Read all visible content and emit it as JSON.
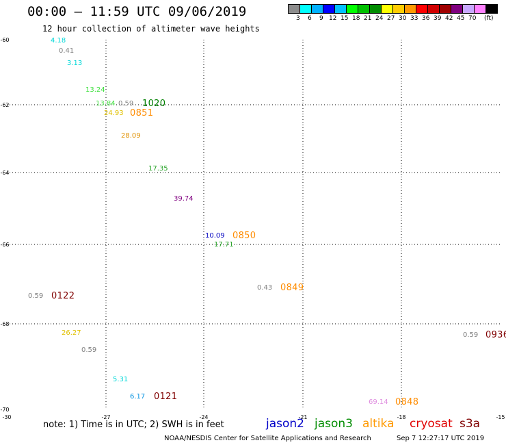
{
  "title": "00:00 – 11:59 UTC 09/06/2019",
  "subtitle": "12 hour collection of altimeter wave heights",
  "legend": {
    "colors": [
      "#8c8c8c",
      "#00ffff",
      "#00b0ff",
      "#0000ff",
      "#00c0ff",
      "#00ff00",
      "#00c000",
      "#008c00",
      "#ffff00",
      "#ffcc00",
      "#ff9900",
      "#ff0000",
      "#d00000",
      "#a00000",
      "#800080",
      "#c8a8ff",
      "#ff80ff",
      "#000000"
    ],
    "labels": [
      "3",
      "6",
      "9",
      "12",
      "15",
      "18",
      "21",
      "24",
      "27",
      "30",
      "33",
      "36",
      "39",
      "42",
      "45",
      "70"
    ],
    "unit": "(ft)"
  },
  "map": {
    "y_axis_labels": [
      "-60",
      "-62",
      "-64",
      "-66",
      "-68",
      "-70"
    ],
    "x_axis_labels": [
      "-30",
      "-27",
      "-24",
      "-21",
      "-18",
      "-15"
    ]
  },
  "observations": [
    {
      "text": "4.18",
      "color": "#00d8d8",
      "kind": "val"
    },
    {
      "text": "0.41",
      "color": "#808080",
      "kind": "val"
    },
    {
      "text": "3.13",
      "color": "#00d8d8",
      "kind": "val"
    },
    {
      "text": "13.24",
      "color": "#40e040",
      "kind": "val"
    },
    {
      "text": "13.84",
      "color": "#40e040",
      "kind": "val"
    },
    {
      "text": "0.59",
      "color": "#808080",
      "kind": "val"
    },
    {
      "text": "1020",
      "color": "#008000",
      "kind": "time"
    },
    {
      "text": "24.93",
      "color": "#e0c000",
      "kind": "val"
    },
    {
      "text": "0851",
      "color": "#ff8c00",
      "kind": "time"
    },
    {
      "text": "28.09",
      "color": "#e09000",
      "kind": "val"
    },
    {
      "text": "17.35",
      "color": "#20a020",
      "kind": "val"
    },
    {
      "text": "39.74",
      "color": "#800080",
      "kind": "val"
    },
    {
      "text": "10.09",
      "color": "#0000c0",
      "kind": "val"
    },
    {
      "text": "0850",
      "color": "#ff8c00",
      "kind": "time"
    },
    {
      "text": "17.71",
      "color": "#20a020",
      "kind": "val"
    },
    {
      "text": "0.43",
      "color": "#808080",
      "kind": "val"
    },
    {
      "text": "0849",
      "color": "#ff8c00",
      "kind": "time"
    },
    {
      "text": "0.59",
      "color": "#808080",
      "kind": "val"
    },
    {
      "text": "0122",
      "color": "#800000",
      "kind": "time"
    },
    {
      "text": "26.27",
      "color": "#e0c000",
      "kind": "val"
    },
    {
      "text": "0.59",
      "color": "#808080",
      "kind": "val"
    },
    {
      "text": "0.59",
      "color": "#808080",
      "kind": "val"
    },
    {
      "text": "0936",
      "color": "#800000",
      "kind": "time"
    },
    {
      "text": "5.31",
      "color": "#00d8d8",
      "kind": "val"
    },
    {
      "text": "6.17",
      "color": "#0090e0",
      "kind": "val"
    },
    {
      "text": "0121",
      "color": "#800000",
      "kind": "time"
    },
    {
      "text": "69.14",
      "color": "#e090e0",
      "kind": "val"
    },
    {
      "text": "0848",
      "color": "#ff8c00",
      "kind": "time"
    }
  ],
  "note": "note:  1)  Time is in UTC;  2)  SWH is in feet",
  "satellites": [
    {
      "name": "jason2",
      "color": "#0000c8"
    },
    {
      "name": "jason3",
      "color": "#008c00"
    },
    {
      "name": "altika",
      "color": "#ff9900"
    },
    {
      "name": "cryosat",
      "color": "#e00000"
    },
    {
      "name": "s3a",
      "color": "#800000"
    }
  ],
  "footer": "NOAA/NESDIS Center for Satellite Applications and Research",
  "footer_timestamp": "Sep  7 12:27:17 UTC 2019"
}
